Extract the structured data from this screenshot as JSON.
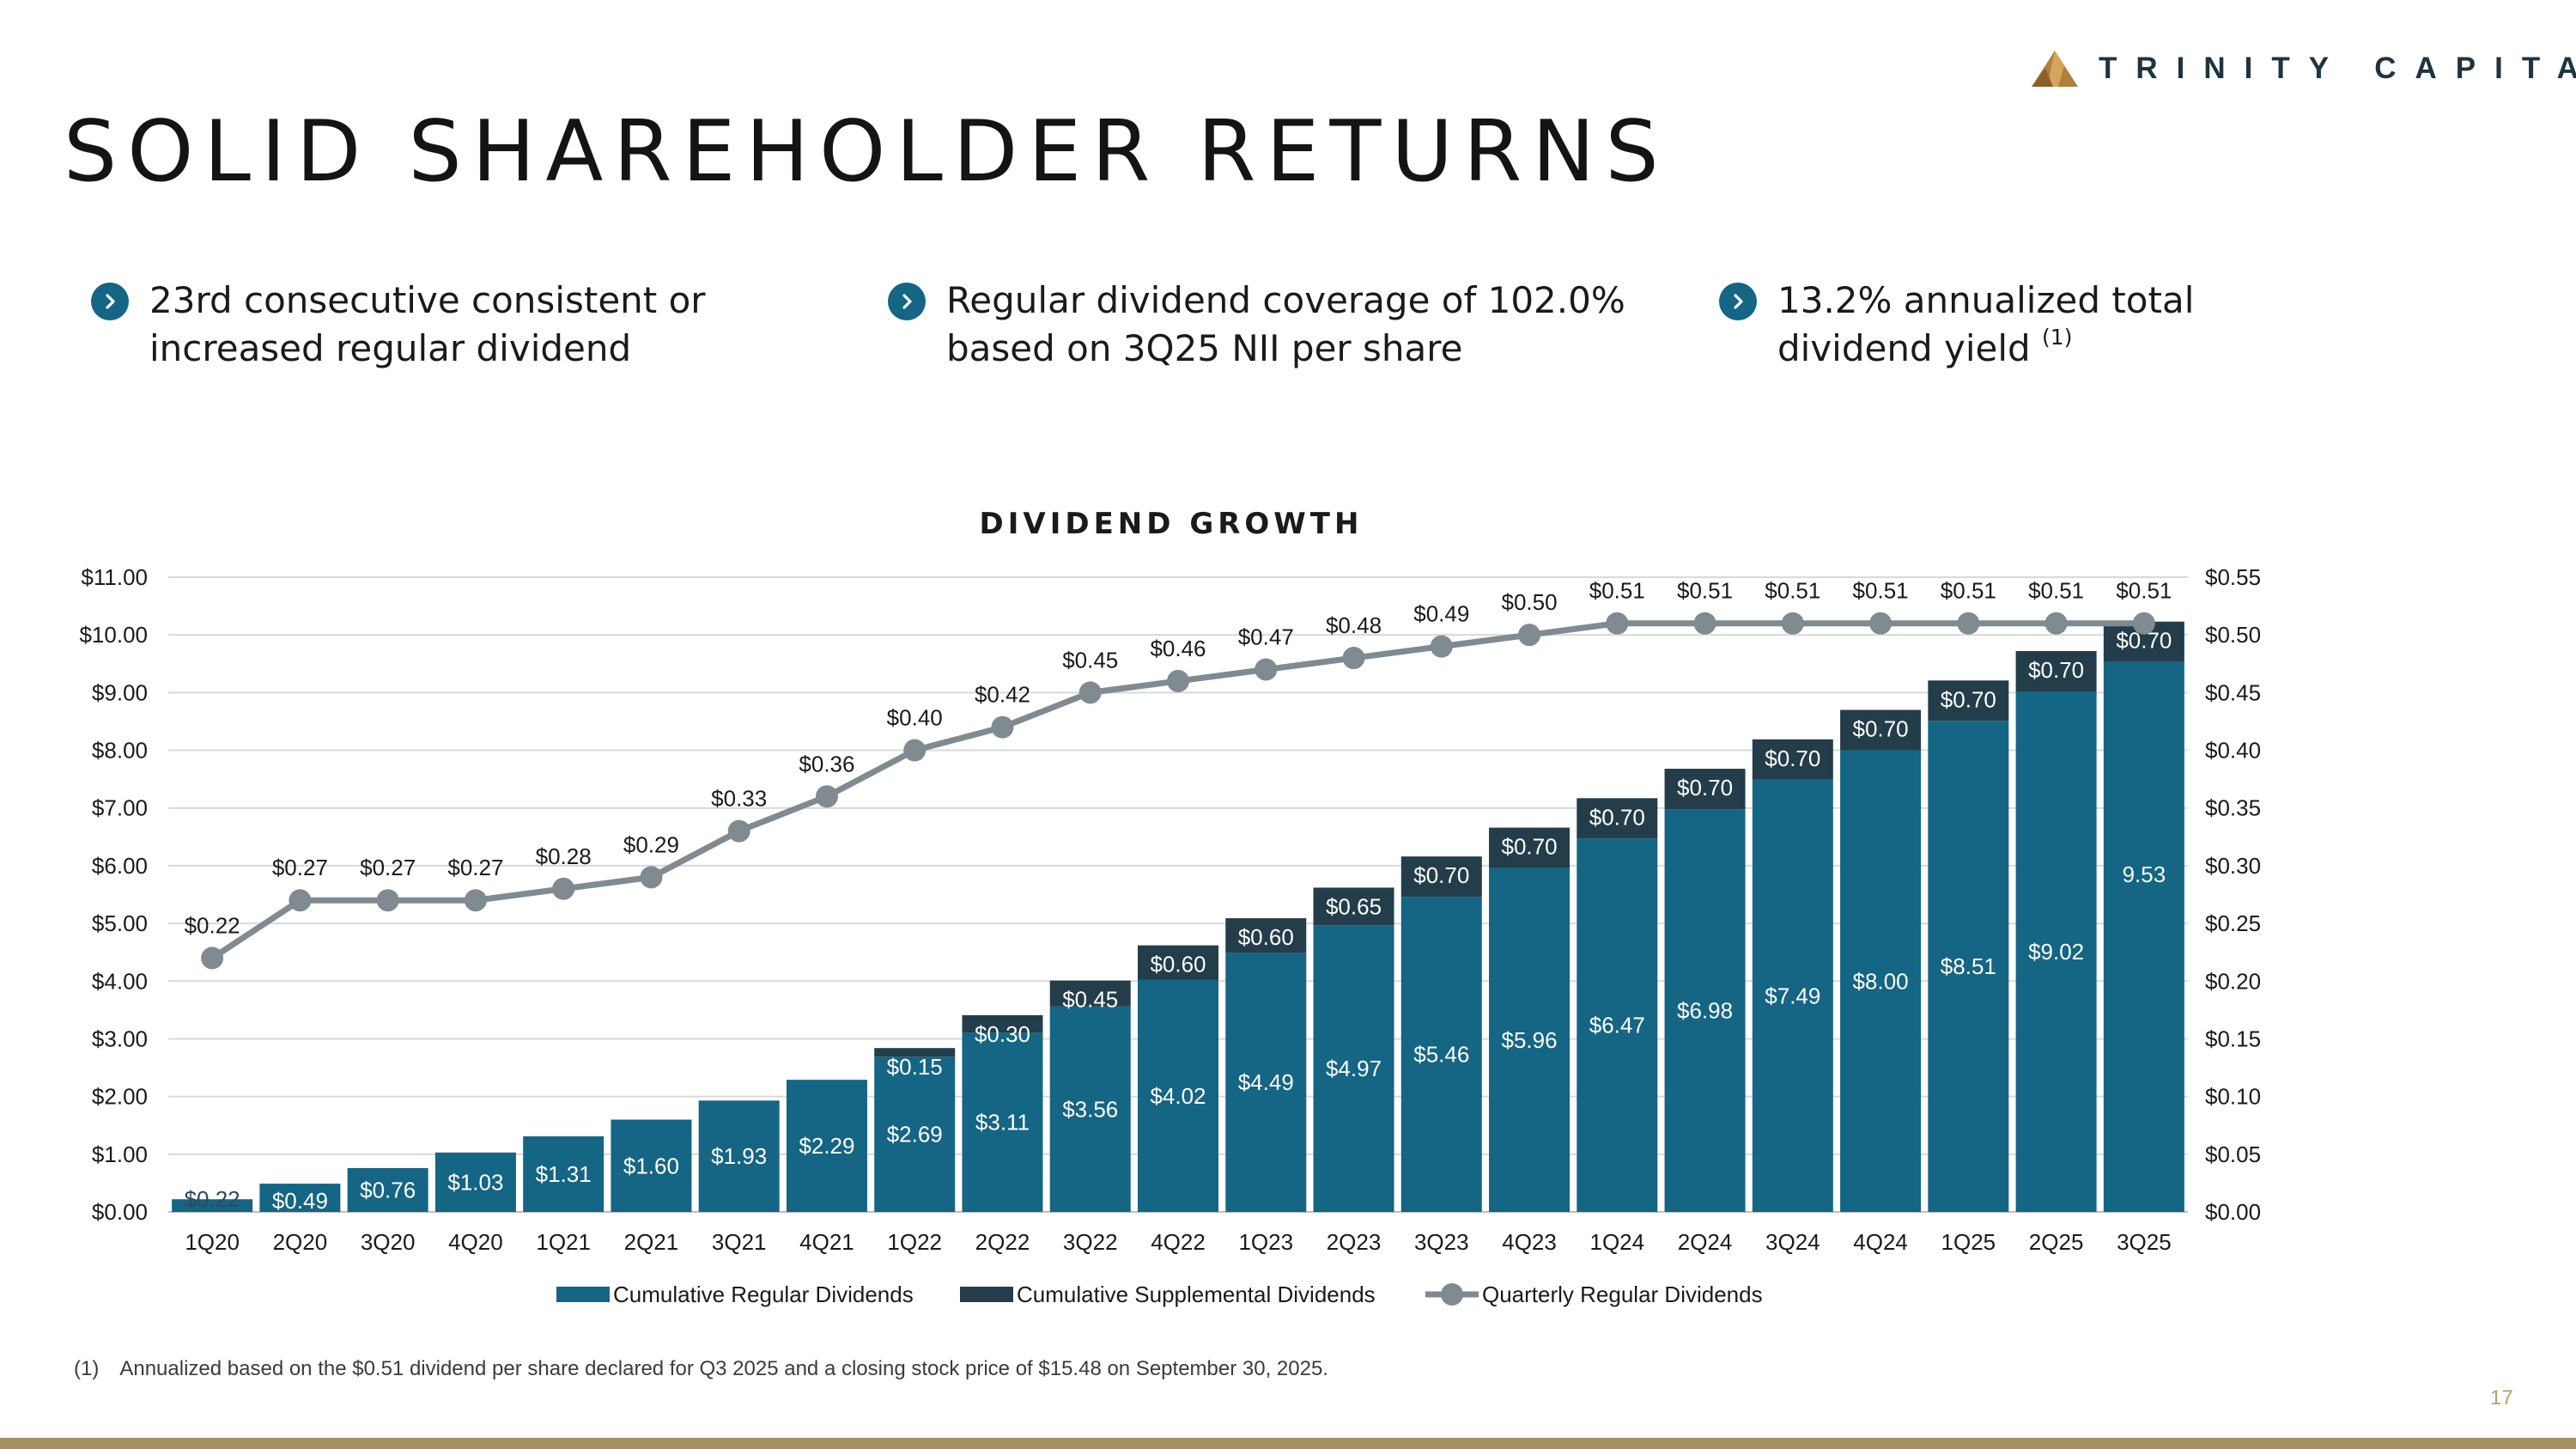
{
  "logo": {
    "text": "TRINITY CAPITAL",
    "icon": "triangle-mountain-logo-icon",
    "color": "#b07f3c"
  },
  "slide_title": "SOLID SHAREHOLDER RETURNS",
  "bullets": [
    {
      "icon": "chevron-right-icon",
      "lines": [
        "23rd consecutive consistent or",
        "increased regular dividend"
      ]
    },
    {
      "icon": "chevron-right-icon",
      "lines": [
        "Regular dividend coverage of 102.0%",
        "based on 3Q25 NII per share"
      ]
    },
    {
      "icon": "chevron-right-icon",
      "lines": [
        "13.2% annualized total",
        "dividend yield"
      ],
      "superscript": "(1)"
    }
  ],
  "chart_data": {
    "type": "bar",
    "title": "DIVIDEND GROWTH",
    "stacked": true,
    "categories": [
      "1Q20",
      "2Q20",
      "3Q20",
      "4Q20",
      "1Q21",
      "2Q21",
      "3Q21",
      "4Q21",
      "1Q22",
      "2Q22",
      "3Q22",
      "4Q22",
      "1Q23",
      "2Q23",
      "3Q23",
      "4Q23",
      "1Q24",
      "2Q24",
      "3Q24",
      "4Q24",
      "1Q25",
      "2Q25",
      "3Q25"
    ],
    "left_axis": {
      "min": 0,
      "max": 11,
      "ticks": [
        "$0.00",
        "$1.00",
        "$2.00",
        "$3.00",
        "$4.00",
        "$5.00",
        "$6.00",
        "$7.00",
        "$8.00",
        "$9.00",
        "$10.00",
        "$11.00"
      ]
    },
    "right_axis": {
      "min": 0,
      "max": 0.55,
      "ticks": [
        "$0.00",
        "$0.05",
        "$0.10",
        "$0.15",
        "$0.20",
        "$0.25",
        "$0.30",
        "$0.35",
        "$0.40",
        "$0.45",
        "$0.50",
        "$0.55"
      ]
    },
    "grid": true,
    "legend_position": "bottom",
    "series": [
      {
        "name": "Cumulative Regular Dividends",
        "kind": "bar",
        "axis": "left",
        "color": "#156584",
        "values": [
          0.22,
          0.49,
          0.76,
          1.03,
          1.31,
          1.6,
          1.93,
          2.29,
          2.69,
          3.11,
          3.56,
          4.02,
          4.49,
          4.97,
          5.46,
          5.96,
          6.47,
          6.98,
          7.49,
          8.0,
          8.51,
          9.02,
          9.53
        ],
        "labels": [
          "$0.22",
          "$0.49",
          "$0.76",
          "$1.03",
          "$1.31",
          "$1.60",
          "$1.93",
          "$2.29",
          "$2.69",
          "$3.11",
          "$3.56",
          "$4.02",
          "$4.49",
          "$4.97",
          "$5.46",
          "$5.96",
          "$6.47",
          "$6.98",
          "$7.49",
          "$8.00",
          "$8.51",
          "$9.02",
          "9.53"
        ]
      },
      {
        "name": "Cumulative Supplemental Dividends",
        "kind": "bar",
        "axis": "left",
        "color": "#233d4a",
        "values": [
          0,
          0,
          0,
          0,
          0,
          0,
          0,
          0,
          0.15,
          0.3,
          0.45,
          0.6,
          0.6,
          0.65,
          0.7,
          0.7,
          0.7,
          0.7,
          0.7,
          0.7,
          0.7,
          0.7,
          0.7
        ],
        "labels": [
          "",
          "",
          "",
          "",
          "",
          "",
          "",
          "",
          "$0.15",
          "$0.30",
          "$0.45",
          "$0.60",
          "$0.60",
          "$0.65",
          "$0.70",
          "$0.70",
          "$0.70",
          "$0.70",
          "$0.70",
          "$0.70",
          "$0.70",
          "$0.70",
          "$0.70"
        ]
      },
      {
        "name": "Quarterly Regular Dividends",
        "kind": "line",
        "axis": "right",
        "color": "#7f8a91",
        "values": [
          0.22,
          0.27,
          0.27,
          0.27,
          0.28,
          0.29,
          0.33,
          0.36,
          0.4,
          0.42,
          0.45,
          0.46,
          0.47,
          0.48,
          0.49,
          0.5,
          0.51,
          0.51,
          0.51,
          0.51,
          0.51,
          0.51,
          0.51
        ],
        "labels": [
          "$0.22",
          "$0.27",
          "$0.27",
          "$0.27",
          "$0.28",
          "$0.29",
          "$0.33",
          "$0.36",
          "$0.40",
          "$0.42",
          "$0.45",
          "$0.46",
          "$0.47",
          "$0.48",
          "$0.49",
          "$0.50",
          "$0.51",
          "$0.51",
          "$0.51",
          "$0.51",
          "$0.51",
          "$0.51",
          "$0.51"
        ]
      }
    ]
  },
  "footnote": {
    "number": "(1)",
    "text": "Annualized based on the $0.51 dividend per share declared for Q3 2025 and a closing stock price of $15.48 on September 30, 2025."
  },
  "page_number": "17",
  "colors": {
    "accent": "#156584",
    "supplemental": "#233d4a",
    "line": "#7f8a91",
    "gold": "#a69165"
  }
}
